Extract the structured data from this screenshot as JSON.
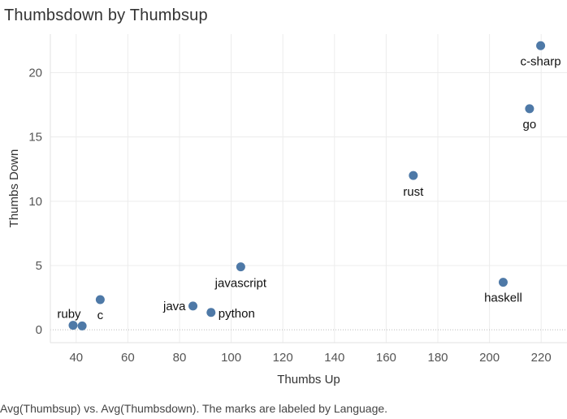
{
  "chart_data": {
    "type": "scatter",
    "title": "Thumbsdown by Thumbsup",
    "xlabel": "Thumbs Up",
    "ylabel": "Thumbs Down",
    "xlim": [
      30,
      230
    ],
    "ylim": [
      -1,
      23
    ],
    "xticks": [
      40,
      60,
      80,
      100,
      120,
      140,
      160,
      180,
      200,
      220
    ],
    "yticks": [
      0,
      5,
      10,
      15,
      20
    ],
    "grid": true,
    "points": [
      {
        "label": "ruby",
        "x": 38.8,
        "y": 0.35
      },
      {
        "label": "",
        "x": 42.3,
        "y": 0.3
      },
      {
        "label": "c",
        "x": 49.3,
        "y": 2.35
      },
      {
        "label": "java",
        "x": 85.2,
        "y": 1.85
      },
      {
        "label": "python",
        "x": 92.2,
        "y": 1.35
      },
      {
        "label": "javascript",
        "x": 103.7,
        "y": 4.9
      },
      {
        "label": "rust",
        "x": 170.5,
        "y": 12.0
      },
      {
        "label": "haskell",
        "x": 205.3,
        "y": 3.7
      },
      {
        "label": "go",
        "x": 215.5,
        "y": 17.2
      },
      {
        "label": "c-sharp",
        "x": 219.8,
        "y": 22.1
      }
    ],
    "marker_color": "#4e79a7"
  },
  "caption": "Avg(Thumbsup) vs. Avg(Thumbsdown).  The marks are labeled by Language."
}
